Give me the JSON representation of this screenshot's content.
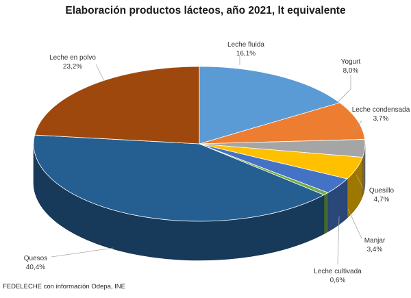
{
  "chart_data": {
    "type": "pie",
    "title": "Elaboración productos lácteos, año 2021, lt equivalente",
    "slices": [
      {
        "label": "Leche fluida",
        "value_label": "16,1%",
        "value": 16.1,
        "color": "#5b9bd5"
      },
      {
        "label": "Yogurt",
        "value_label": "8,0%",
        "value": 8.0,
        "color": "#ed7d31"
      },
      {
        "label": "Leche condensada",
        "value_label": "3,7%",
        "value": 3.7,
        "color": "#a5a5a5"
      },
      {
        "label": "Quesillo",
        "value_label": "4,7%",
        "value": 4.7,
        "color": "#ffc000"
      },
      {
        "label": "Manjar",
        "value_label": "3,4%",
        "value": 3.4,
        "color": "#4472c4"
      },
      {
        "label": "Leche cultivada",
        "value_label": "0,6%",
        "value": 0.6,
        "color": "#70ad47"
      },
      {
        "label": "Quesos",
        "value_label": "40,4%",
        "value": 40.4,
        "color": "#255e91"
      },
      {
        "label": "Leche en polvo",
        "value_label": "23,2%",
        "value": 23.2,
        "color": "#9e480e"
      }
    ],
    "source": "FEDELECHE con información Odepa, INE"
  }
}
